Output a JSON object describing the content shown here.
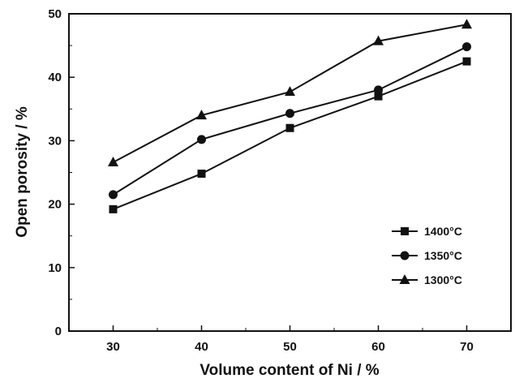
{
  "chart_data": {
    "type": "line",
    "title": "",
    "xlabel": "Volume content of Ni / %",
    "ylabel": "Open porosity / %",
    "x": [
      30,
      40,
      50,
      60,
      70
    ],
    "xlim": [
      25,
      75
    ],
    "ylim": [
      0,
      50
    ],
    "xticks": [
      "30",
      "40",
      "50",
      "60",
      "70"
    ],
    "yticks": [
      "0",
      "10",
      "20",
      "30",
      "40",
      "50"
    ],
    "grid": false,
    "legend_position": "bottom-right",
    "series": [
      {
        "name": "1400",
        "unit": "°C",
        "marker": "square",
        "values": [
          19.2,
          24.8,
          32.0,
          37.0,
          42.5
        ]
      },
      {
        "name": "1350",
        "unit": "°C",
        "marker": "circle",
        "values": [
          21.5,
          30.2,
          34.3,
          38.0,
          44.8
        ]
      },
      {
        "name": "1300",
        "unit": "°C",
        "marker": "triangle",
        "values": [
          26.6,
          34.0,
          37.7,
          45.7,
          48.3
        ]
      }
    ],
    "colors": {
      "line": "#111111",
      "background": "#ffffff"
    }
  }
}
